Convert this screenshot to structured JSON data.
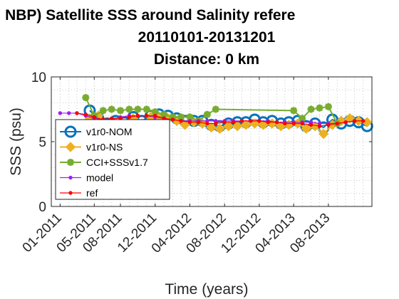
{
  "chart_data": {
    "type": "line",
    "title": [
      "on NBP) Satellite SSS around Salinity refere",
      "20110101-20131201",
      "Distance: 0 km"
    ],
    "xlabel": "Time (years)",
    "ylabel": "SSS (psu)",
    "ylim": [
      0,
      10
    ],
    "yticks": [
      "0",
      "5",
      "10"
    ],
    "xlim": [
      "2010-12-01",
      "2014-01-01"
    ],
    "xticks": [
      {
        "date": "2011-01-01",
        "label": "01-2011"
      },
      {
        "date": "2011-05-01",
        "label": "05-2011"
      },
      {
        "date": "2011-08-01",
        "label": "08-2011"
      },
      {
        "date": "2011-12-01",
        "label": "12-2011"
      },
      {
        "date": "2012-04-01",
        "label": "04-2012"
      },
      {
        "date": "2012-08-01",
        "label": "08-2012"
      },
      {
        "date": "2012-12-01",
        "label": "12-2012"
      },
      {
        "date": "2013-04-01",
        "label": "04-2013"
      },
      {
        "date": "2013-08-01",
        "label": "08-2013"
      }
    ],
    "grid": "dotted",
    "legend_position": "lower-left",
    "series": [
      {
        "name": "v1r0-NOM",
        "color": "#0072BD",
        "marker": "circle",
        "points": [
          [
            "2011-04-15",
            7.4
          ],
          [
            "2011-05-15",
            6.8
          ],
          [
            "2011-06-15",
            6.4
          ],
          [
            "2011-07-15",
            6.6
          ],
          [
            "2011-08-15",
            6.5
          ],
          [
            "2011-09-15",
            6.9
          ],
          [
            "2011-10-15",
            6.6
          ],
          [
            "2011-11-15",
            7.0
          ],
          [
            "2011-12-15",
            7.1
          ],
          [
            "2012-01-15",
            7.0
          ],
          [
            "2012-02-15",
            6.8
          ],
          [
            "2012-03-15",
            6.6
          ],
          [
            "2012-04-15",
            6.6
          ],
          [
            "2012-05-15",
            6.6
          ],
          [
            "2012-06-15",
            6.3
          ],
          [
            "2012-07-15",
            6.2
          ],
          [
            "2012-08-15",
            6.4
          ],
          [
            "2012-09-15",
            6.5
          ],
          [
            "2012-10-15",
            6.5
          ],
          [
            "2012-11-15",
            6.7
          ],
          [
            "2012-12-15",
            6.5
          ],
          [
            "2013-01-15",
            6.6
          ],
          [
            "2013-02-15",
            6.4
          ],
          [
            "2013-03-15",
            6.5
          ],
          [
            "2013-04-15",
            6.6
          ],
          [
            "2013-05-15",
            6.2
          ],
          [
            "2013-06-15",
            6.4
          ],
          [
            "2013-07-15",
            6.1
          ],
          [
            "2013-08-15",
            6.7
          ],
          [
            "2013-09-15",
            6.4
          ],
          [
            "2013-10-15",
            6.6
          ],
          [
            "2013-11-15",
            6.5
          ],
          [
            "2013-12-15",
            6.2
          ]
        ]
      },
      {
        "name": "v1r0-NS",
        "color": "#EDB120",
        "marker": "diamond",
        "points": [
          [
            "2011-04-15",
            6.8
          ],
          [
            "2011-05-15",
            7.0
          ],
          [
            "2011-06-15",
            6.4
          ],
          [
            "2011-07-15",
            6.5
          ],
          [
            "2011-08-15",
            6.3
          ],
          [
            "2011-09-15",
            6.8
          ],
          [
            "2011-10-15",
            6.4
          ],
          [
            "2011-11-15",
            6.9
          ],
          [
            "2011-12-15",
            6.9
          ],
          [
            "2012-01-15",
            6.8
          ],
          [
            "2012-02-15",
            6.6
          ],
          [
            "2012-03-15",
            6.3
          ],
          [
            "2012-04-15",
            6.5
          ],
          [
            "2012-05-15",
            6.4
          ],
          [
            "2012-06-15",
            6.1
          ],
          [
            "2012-07-15",
            6.0
          ],
          [
            "2012-08-15",
            6.2
          ],
          [
            "2012-09-15",
            6.2
          ],
          [
            "2012-10-15",
            6.3
          ],
          [
            "2012-11-15",
            6.4
          ],
          [
            "2012-12-15",
            6.3
          ],
          [
            "2013-01-15",
            6.4
          ],
          [
            "2013-02-15",
            6.2
          ],
          [
            "2013-03-15",
            6.3
          ],
          [
            "2013-04-15",
            6.4
          ],
          [
            "2013-05-15",
            6.0
          ],
          [
            "2013-06-15",
            6.2
          ],
          [
            "2013-07-15",
            5.6
          ],
          [
            "2013-08-15",
            6.3
          ],
          [
            "2013-09-15",
            6.6
          ],
          [
            "2013-10-15",
            6.8
          ],
          [
            "2013-11-15",
            6.6
          ],
          [
            "2013-12-15",
            6.5
          ]
        ]
      },
      {
        "name": "CCI+SSSv1.7",
        "color": "#77AC30",
        "marker": "star",
        "points": [
          [
            "2011-04-01",
            8.4
          ],
          [
            "2011-05-01",
            7.0
          ],
          [
            "2011-06-01",
            7.4
          ],
          [
            "2011-07-01",
            7.5
          ],
          [
            "2011-08-01",
            7.4
          ],
          [
            "2011-09-01",
            7.5
          ],
          [
            "2011-10-01",
            7.5
          ],
          [
            "2011-11-01",
            7.5
          ],
          [
            "2011-12-01",
            7.3
          ],
          [
            "2012-01-01",
            7.1
          ],
          [
            "2012-02-01",
            6.9
          ],
          [
            "2012-03-01",
            6.9
          ],
          [
            "2012-04-01",
            6.9
          ],
          [
            "2012-05-01",
            6.6
          ],
          [
            "2012-06-01",
            7.1
          ],
          [
            "2012-07-01",
            7.5
          ],
          [
            "2013-04-01",
            7.4
          ],
          [
            "2013-05-01",
            6.8
          ],
          [
            "2013-06-01",
            7.5
          ],
          [
            "2013-07-01",
            7.6
          ],
          [
            "2013-08-01",
            7.7
          ],
          [
            "2013-09-01",
            6.4
          ]
        ]
      },
      {
        "name": "model",
        "color": "#A020F0",
        "marker": "point",
        "points": [
          [
            "2011-01-01",
            7.2
          ],
          [
            "2011-02-01",
            7.2
          ],
          [
            "2011-03-01",
            7.2
          ],
          [
            "2011-04-01",
            7.0
          ],
          [
            "2011-05-01",
            6.8
          ],
          [
            "2011-06-01",
            6.7
          ],
          [
            "2011-07-01",
            6.7
          ],
          [
            "2011-08-01",
            6.9
          ],
          [
            "2011-09-01",
            7.0
          ],
          [
            "2011-10-01",
            7.0
          ],
          [
            "2011-11-01",
            7.0
          ],
          [
            "2011-12-01",
            6.9
          ],
          [
            "2012-01-01",
            6.8
          ],
          [
            "2012-02-01",
            6.7
          ],
          [
            "2012-03-01",
            6.6
          ],
          [
            "2012-04-01",
            6.6
          ],
          [
            "2012-05-01",
            6.6
          ],
          [
            "2012-06-01",
            6.6
          ],
          [
            "2012-07-01",
            6.6
          ],
          [
            "2012-08-01",
            6.6
          ],
          [
            "2012-09-01",
            6.6
          ],
          [
            "2012-10-01",
            6.6
          ],
          [
            "2012-11-01",
            6.6
          ],
          [
            "2012-12-01",
            6.6
          ],
          [
            "2013-01-01",
            6.6
          ],
          [
            "2013-02-01",
            6.5
          ],
          [
            "2013-03-01",
            6.5
          ],
          [
            "2013-04-01",
            6.5
          ],
          [
            "2013-05-01",
            6.5
          ],
          [
            "2013-06-01",
            6.5
          ],
          [
            "2013-07-01",
            6.4
          ],
          [
            "2013-08-01",
            6.4
          ],
          [
            "2013-09-01",
            6.4
          ],
          [
            "2013-10-01",
            6.5
          ],
          [
            "2013-11-01",
            6.6
          ],
          [
            "2013-12-01",
            6.6
          ]
        ]
      },
      {
        "name": "ref",
        "color": "#FF0000",
        "marker": "point",
        "points": [
          [
            "2011-03-01",
            7.2
          ],
          [
            "2011-04-01",
            7.1
          ],
          [
            "2011-05-01",
            6.9
          ],
          [
            "2011-06-01",
            6.7
          ],
          [
            "2011-07-01",
            6.8
          ],
          [
            "2011-08-01",
            6.8
          ],
          [
            "2011-09-01",
            6.9
          ],
          [
            "2011-10-01",
            7.0
          ],
          [
            "2011-11-01",
            7.0
          ],
          [
            "2011-12-01",
            7.0
          ],
          [
            "2012-01-01",
            6.8
          ],
          [
            "2012-02-01",
            6.7
          ],
          [
            "2012-03-01",
            6.6
          ],
          [
            "2012-04-01",
            6.5
          ],
          [
            "2012-05-01",
            6.5
          ],
          [
            "2012-06-01",
            6.4
          ],
          [
            "2012-07-01",
            6.4
          ],
          [
            "2012-08-01",
            6.5
          ],
          [
            "2012-09-01",
            6.5
          ],
          [
            "2012-10-01",
            6.6
          ],
          [
            "2012-11-01",
            6.6
          ],
          [
            "2012-12-01",
            6.6
          ],
          [
            "2013-01-01",
            6.5
          ],
          [
            "2013-02-01",
            6.5
          ],
          [
            "2013-03-01",
            6.4
          ],
          [
            "2013-04-01",
            6.4
          ],
          [
            "2013-05-01",
            6.4
          ],
          [
            "2013-06-01",
            6.3
          ],
          [
            "2013-07-01",
            6.2
          ],
          [
            "2013-08-01",
            6.3
          ],
          [
            "2013-09-01",
            6.4
          ],
          [
            "2013-10-01",
            6.5
          ],
          [
            "2013-11-01",
            6.6
          ],
          [
            "2013-12-01",
            6.6
          ]
        ]
      }
    ]
  }
}
